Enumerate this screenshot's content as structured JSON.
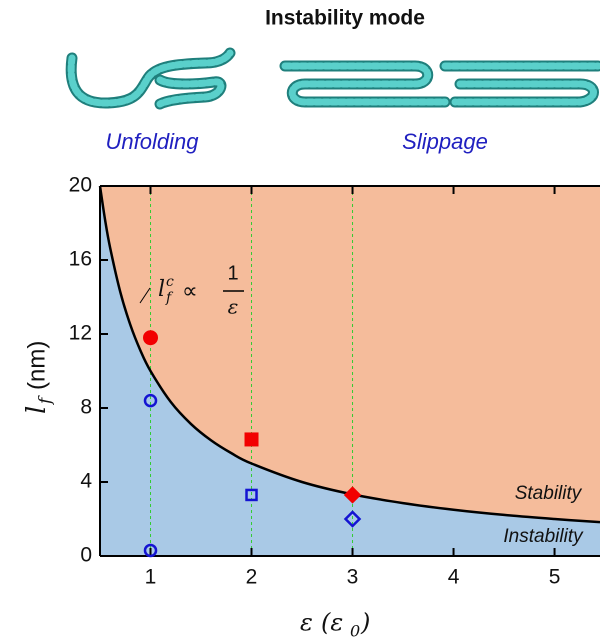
{
  "chart_data": {
    "type": "scatter",
    "title": "Instability mode",
    "mode_labels": [
      "Unfolding",
      "Slippage"
    ],
    "region_labels": [
      "Stability",
      "Instability"
    ],
    "annotation": {
      "base": "l",
      "sub": "f",
      "sup": "c",
      "rel": "∝",
      "num": "1",
      "den": "ε"
    },
    "ylabel": {
      "base": "l",
      "sub": "f",
      "unit": "(nm)"
    },
    "xlabel": {
      "base": "ε",
      "open": "(ε",
      "sub": "0",
      "close": ")"
    },
    "xlim": [
      0.5,
      5.45
    ],
    "ylim": [
      0,
      20
    ],
    "xticks": [
      1,
      2,
      3,
      4,
      5
    ],
    "yticks": [
      0,
      4,
      8,
      12,
      16,
      20
    ],
    "guide_x": [
      1,
      2,
      3
    ],
    "guide_color": "#33cc33",
    "region_colors": {
      "stability": "#f5bc9b",
      "instability": "#a9c9e6"
    },
    "boundary": {
      "color": "#000000",
      "x": [
        0.5,
        0.55,
        0.6,
        0.7,
        0.8,
        0.9,
        1,
        1.2,
        1.4,
        1.6,
        1.8,
        2,
        2.5,
        3,
        3.5,
        4,
        4.5,
        5,
        5.45
      ],
      "y": [
        20,
        18.18,
        16.67,
        14.29,
        12.5,
        11.11,
        10,
        8.33,
        7.14,
        6.25,
        5.56,
        5,
        4,
        3.33,
        2.86,
        2.5,
        2.22,
        2,
        1.83
      ]
    },
    "series": [
      {
        "color": "#f20000",
        "filled": true,
        "x": [
          1,
          2,
          3
        ],
        "values": [
          11.8,
          6.3,
          3.3
        ],
        "markers": [
          "circle",
          "square",
          "diamond"
        ]
      },
      {
        "color": "#1414d2",
        "filled": false,
        "x": [
          1,
          1,
          2,
          3
        ],
        "values": [
          8.4,
          0.3,
          3.3,
          2.0
        ],
        "markers": [
          "circle",
          "circle",
          "square",
          "diamond"
        ]
      }
    ]
  }
}
